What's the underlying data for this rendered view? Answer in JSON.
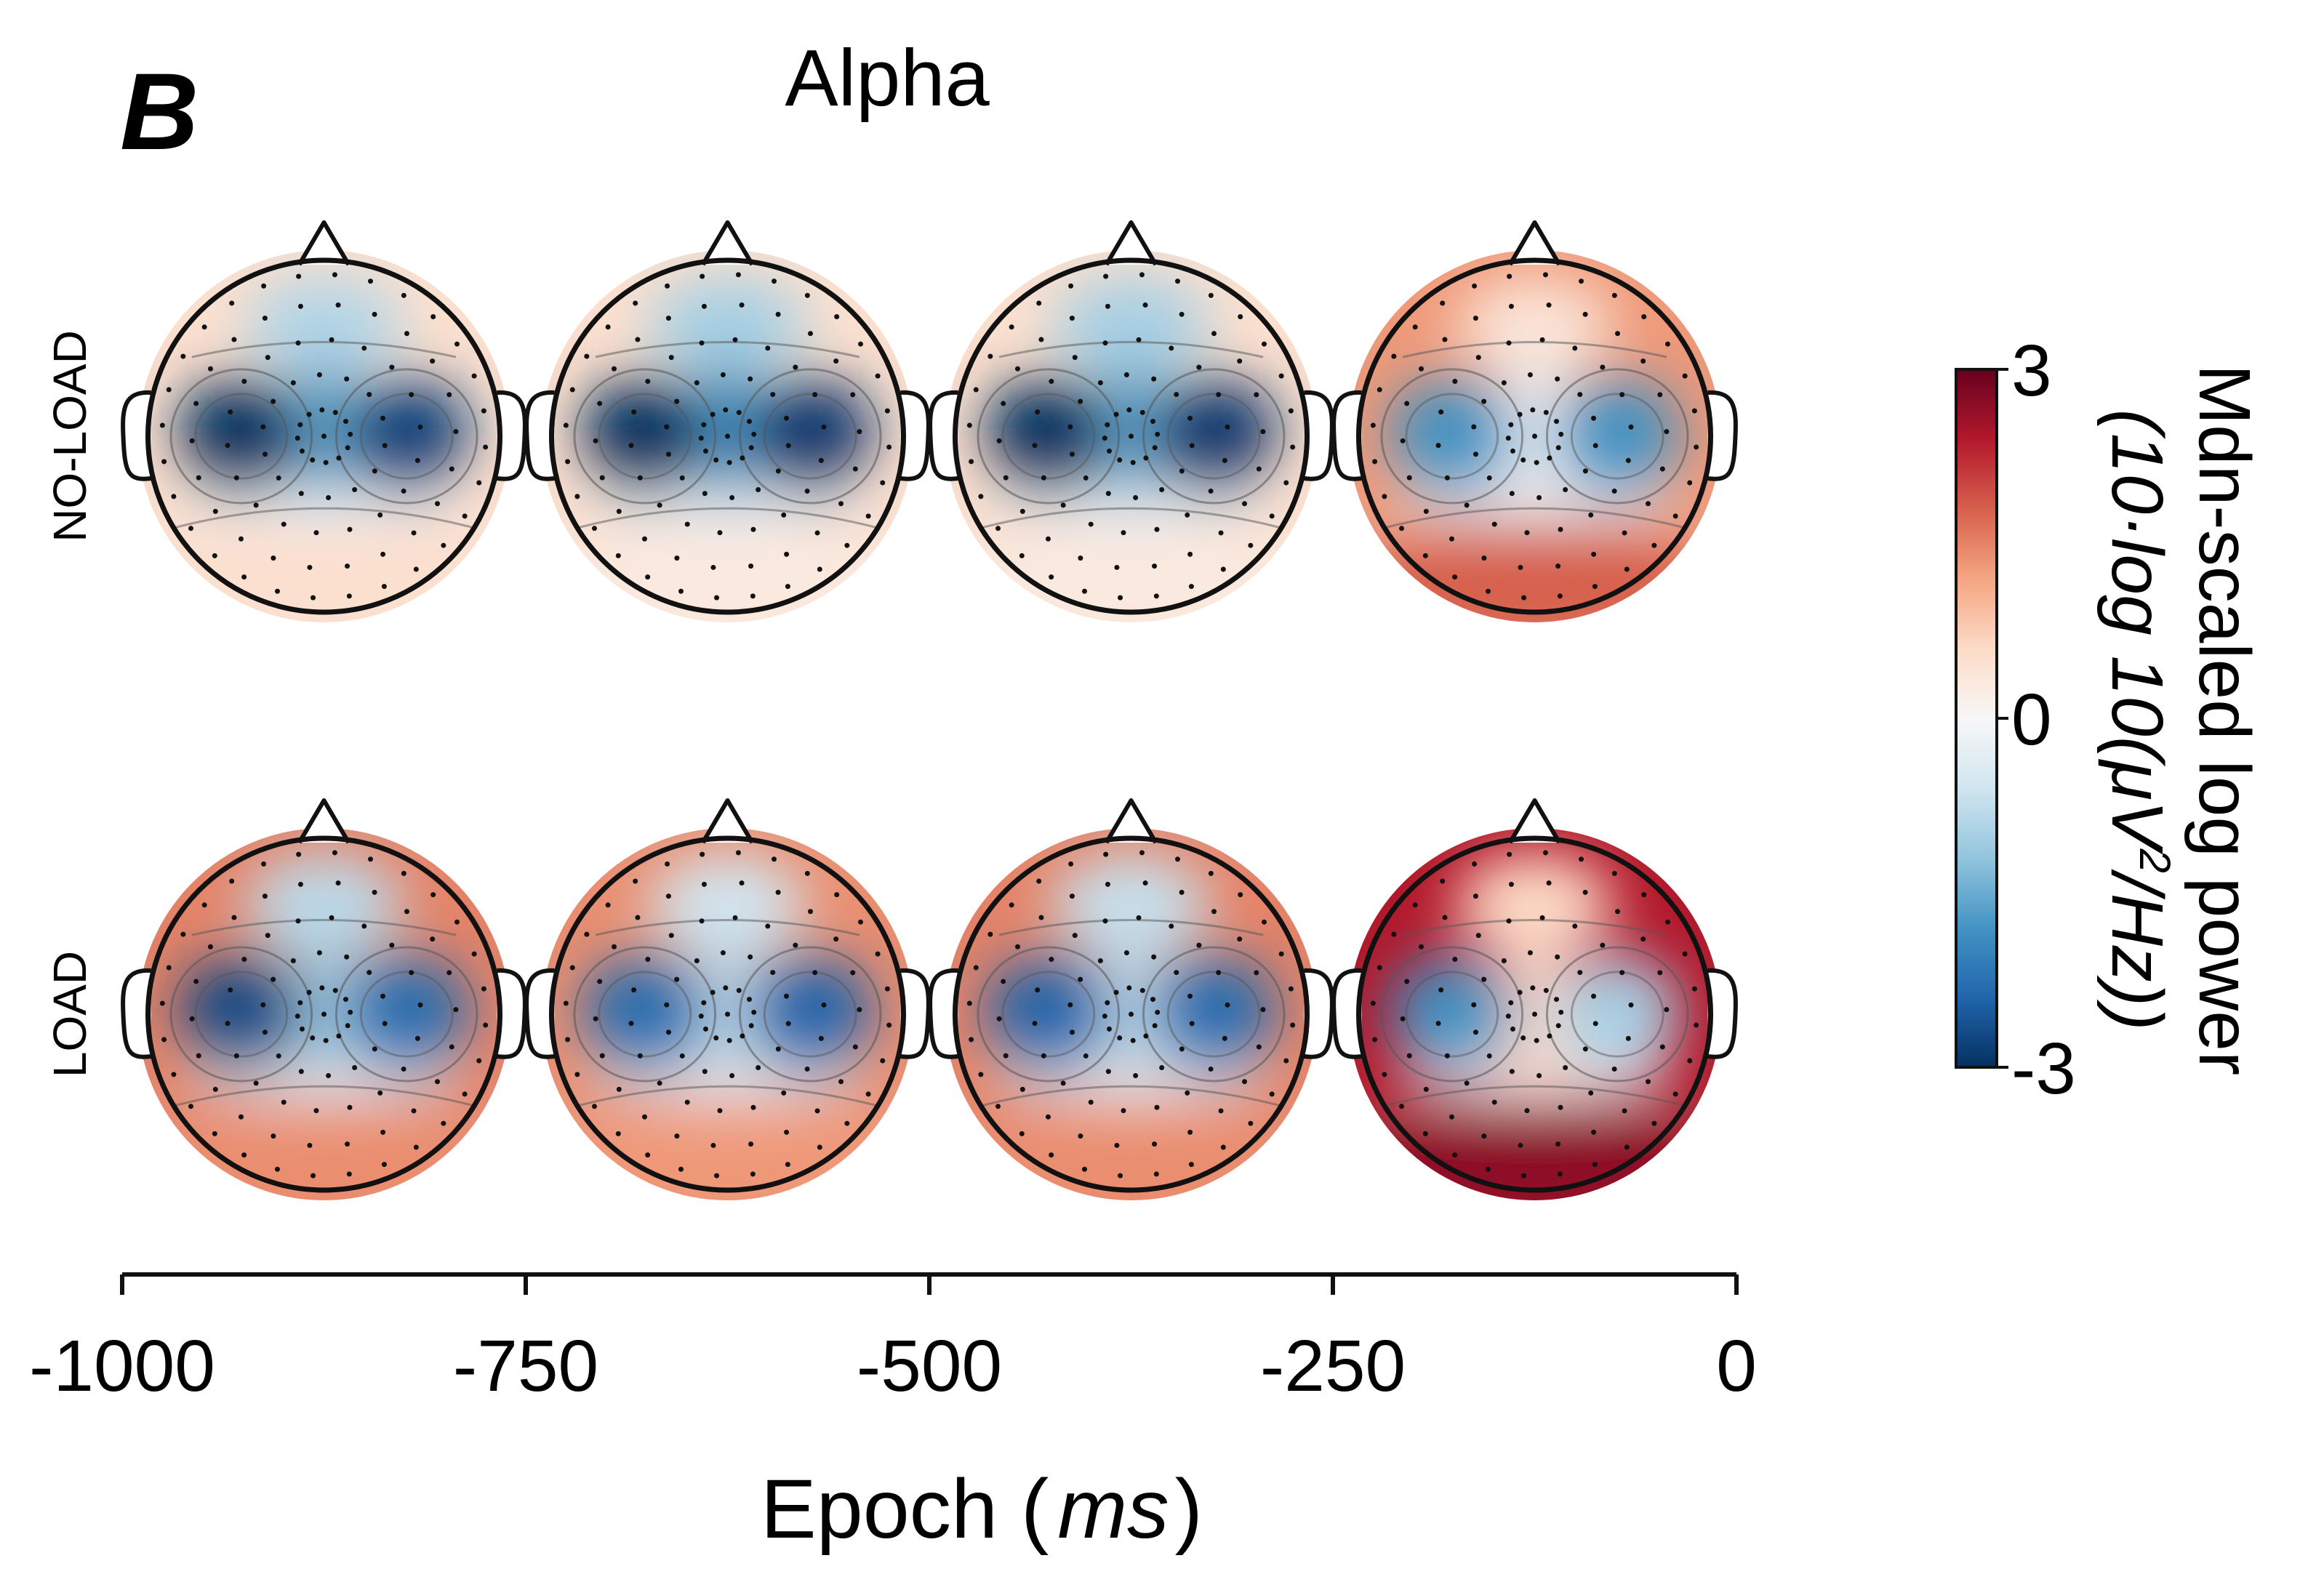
{
  "figure": {
    "panel_letter": "B",
    "title": "Alpha"
  },
  "chart_data": {
    "type": "heatmap",
    "title": "Alpha",
    "row_labels": [
      "NO-LOAD",
      "LOAD"
    ],
    "x": {
      "label_main": "Epoch (",
      "label_unit": "ms",
      "label_close": ")",
      "ticks": [
        -1000,
        -750,
        -500,
        -250,
        0
      ],
      "tick_labels": [
        "-1000",
        "-750",
        "-500",
        "-250",
        "0"
      ],
      "range": [
        -1000,
        0
      ],
      "epoch_centers": [
        -875,
        -625,
        -375,
        -125
      ]
    },
    "colorbar": {
      "min": -3,
      "max": 3,
      "tick_values": [
        3,
        0,
        -3
      ],
      "tick_labels": [
        "3",
        "0",
        "-3"
      ],
      "label_line1": "Mdn-scaled log power",
      "label_line2_a": "(10·log 10(μV",
      "label_line2_sup": "2",
      "label_line2_b": "/Hz))",
      "colormap": [
        "#053061",
        "#2166ac",
        "#4393c3",
        "#92c5de",
        "#d1e5f0",
        "#f7f7f7",
        "#fddbc7",
        "#f4a582",
        "#d6604d",
        "#b2182b",
        "#67001f"
      ]
    },
    "maps": [
      {
        "condition": "NO-LOAD",
        "epochs": [
          {
            "background": 0.5,
            "frontal": -0.9,
            "left": -3.0,
            "right": -2.8,
            "midline": -1.6,
            "occipital": 0.5,
            "posterior_band": -0.3
          },
          {
            "background": 0.5,
            "frontal": -1.0,
            "left": -3.0,
            "right": -2.9,
            "midline": -1.8,
            "occipital": 0.3,
            "posterior_band": -0.4
          },
          {
            "background": 0.5,
            "frontal": -1.0,
            "left": -3.0,
            "right": -2.9,
            "midline": -1.6,
            "occipital": 0.3,
            "posterior_band": -0.4
          },
          {
            "background": 1.3,
            "frontal": 0.4,
            "left": -1.8,
            "right": -1.8,
            "midline": -0.2,
            "occipital": 1.8,
            "posterior_band": -0.2
          }
        ]
      },
      {
        "condition": "LOAD",
        "epochs": [
          {
            "background": 1.5,
            "frontal": -0.8,
            "left": -2.7,
            "right": -2.3,
            "midline": -1.1,
            "occipital": 1.4,
            "posterior_band": -0.3
          },
          {
            "background": 1.4,
            "frontal": -0.6,
            "left": -2.3,
            "right": -2.4,
            "midline": -0.8,
            "occipital": 1.3,
            "posterior_band": -0.3
          },
          {
            "background": 1.5,
            "frontal": -0.7,
            "left": -2.4,
            "right": -2.3,
            "midline": -0.8,
            "occipital": 1.4,
            "posterior_band": -0.3
          },
          {
            "background": 2.4,
            "frontal": 0.6,
            "left": -1.8,
            "right": -1.0,
            "midline": 0.6,
            "occipital": 2.7,
            "posterior_band": 0.2
          }
        ]
      }
    ]
  }
}
